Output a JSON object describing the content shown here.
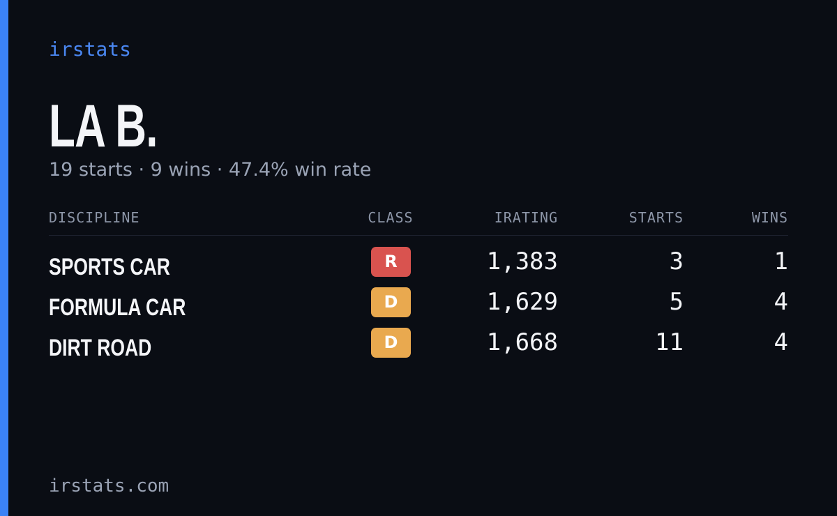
{
  "header": {
    "brand": "irstats",
    "name": "LA B.",
    "summary": "19 starts · 9 wins · 47.4% win rate"
  },
  "table": {
    "columns": [
      "DISCIPLINE",
      "CLASS",
      "IRATING",
      "STARTS",
      "WINS"
    ],
    "rows": [
      {
        "discipline": "SPORTS CAR",
        "class": "R",
        "class_color": "#d9534f",
        "irating": "1,383",
        "starts": "3",
        "wins": "1"
      },
      {
        "discipline": "FORMULA CAR",
        "class": "D",
        "class_color": "#e9a94f",
        "irating": "1,629",
        "starts": "5",
        "wins": "4"
      },
      {
        "discipline": "DIRT ROAD",
        "class": "D",
        "class_color": "#e9a94f",
        "irating": "1,668",
        "starts": "11",
        "wins": "4"
      }
    ]
  },
  "footer": {
    "url": "irstats.com"
  }
}
